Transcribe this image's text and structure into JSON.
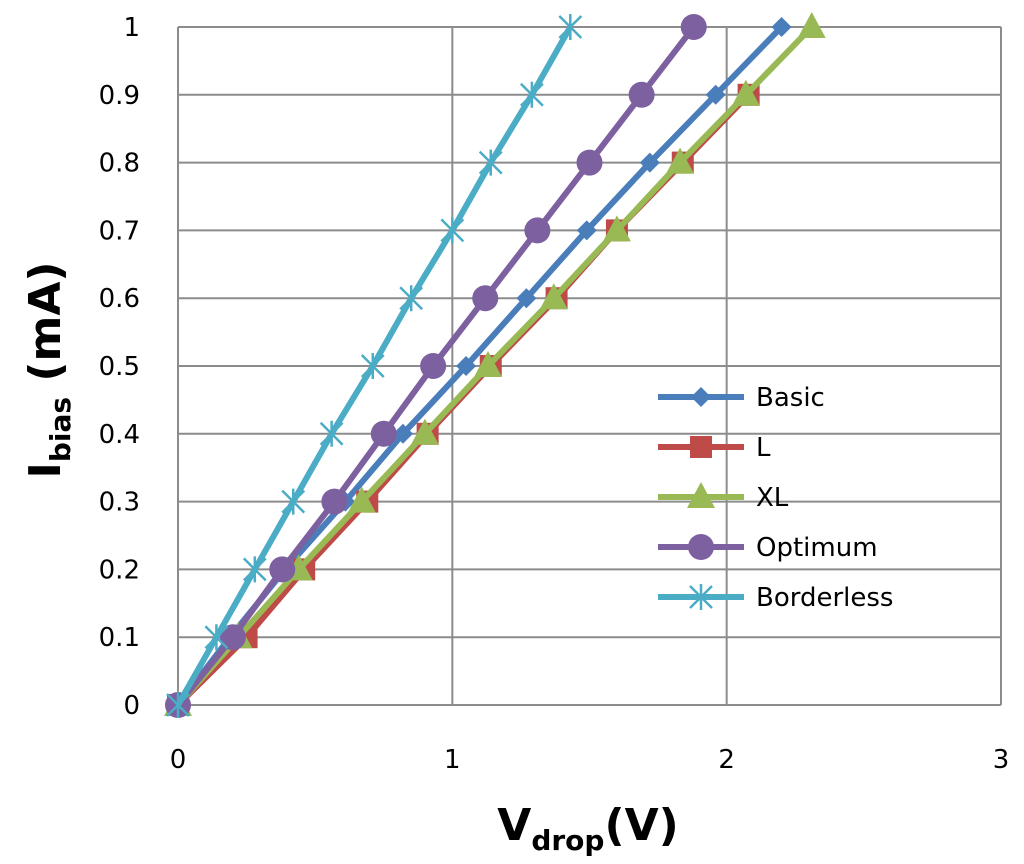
{
  "chart_data": {
    "type": "line",
    "xlabel": {
      "main": "V",
      "sub": "drop",
      "rest": "(V)"
    },
    "ylabel": {
      "main": "I",
      "sub": "bias",
      "rest": " (mA)"
    },
    "xlim": [
      0,
      3
    ],
    "ylim": [
      0,
      1
    ],
    "xticks": [
      "0",
      "1",
      "2",
      "3"
    ],
    "yticks": [
      "0",
      "0.1",
      "0.2",
      "0.3",
      "0.4",
      "0.5",
      "0.6",
      "0.7",
      "0.8",
      "0.9",
      "1"
    ],
    "grid": true,
    "legend_position": "right-middle",
    "series": [
      {
        "name": "Basic",
        "color": "#4A7EBB",
        "marker": "diamond",
        "x": [
          0,
          0.19,
          0.39,
          0.61,
          0.82,
          1.05,
          1.27,
          1.49,
          1.72,
          1.96,
          2.2
        ],
        "y": [
          0,
          0.1,
          0.2,
          0.3,
          0.4,
          0.5,
          0.6,
          0.7,
          0.8,
          0.9,
          1.0
        ]
      },
      {
        "name": "L",
        "color": "#BE4B48",
        "marker": "square",
        "x": [
          0,
          0.25,
          0.46,
          0.69,
          0.91,
          1.14,
          1.38,
          1.6,
          1.84,
          2.08
        ],
        "y": [
          0,
          0.1,
          0.2,
          0.3,
          0.4,
          0.5,
          0.6,
          0.7,
          0.8,
          0.9
        ]
      },
      {
        "name": "XL",
        "color": "#98B954",
        "marker": "triangle",
        "x": [
          0,
          0.22,
          0.44,
          0.67,
          0.9,
          1.13,
          1.37,
          1.6,
          1.83,
          2.07,
          2.31
        ],
        "y": [
          0,
          0.1,
          0.2,
          0.3,
          0.4,
          0.5,
          0.6,
          0.7,
          0.8,
          0.9,
          1.0
        ]
      },
      {
        "name": "Optimum",
        "color": "#7D60A0",
        "marker": "circle",
        "x": [
          0,
          0.2,
          0.38,
          0.57,
          0.75,
          0.93,
          1.12,
          1.31,
          1.5,
          1.69,
          1.88
        ],
        "y": [
          0,
          0.1,
          0.2,
          0.3,
          0.4,
          0.5,
          0.6,
          0.7,
          0.8,
          0.9,
          1.0
        ]
      },
      {
        "name": "Borderless",
        "color": "#4BACC6",
        "marker": "star",
        "x": [
          0,
          0.14,
          0.28,
          0.42,
          0.56,
          0.71,
          0.85,
          1.0,
          1.14,
          1.29,
          1.43
        ],
        "y": [
          0,
          0.1,
          0.2,
          0.3,
          0.4,
          0.5,
          0.6,
          0.7,
          0.8,
          0.9,
          1.0
        ]
      }
    ]
  }
}
